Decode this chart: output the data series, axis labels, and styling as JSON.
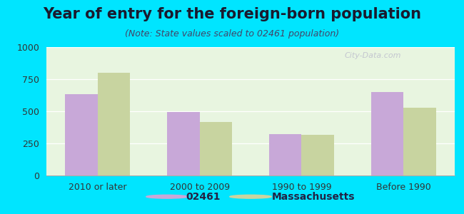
{
  "title": "Year of entry for the foreign-born population",
  "subtitle": "(Note: State values scaled to 02461 population)",
  "categories": [
    "2010 or later",
    "2000 to 2009",
    "1990 to 1999",
    "Before 1990"
  ],
  "values_02461": [
    635,
    495,
    320,
    650
  ],
  "values_massachusetts": [
    800,
    415,
    315,
    530
  ],
  "color_02461": "#c8a8d8",
  "color_massachusetts": "#c8d4a0",
  "background_outer": "#00e5ff",
  "background_plot": "#e8f5e0",
  "ylim": [
    0,
    1000
  ],
  "yticks": [
    0,
    250,
    500,
    750,
    1000
  ],
  "legend_label_1": "02461",
  "legend_label_2": "Massachusetts",
  "bar_width": 0.32,
  "title_fontsize": 15,
  "subtitle_fontsize": 9,
  "tick_fontsize": 9,
  "legend_fontsize": 10,
  "watermark": "City-Data.com"
}
